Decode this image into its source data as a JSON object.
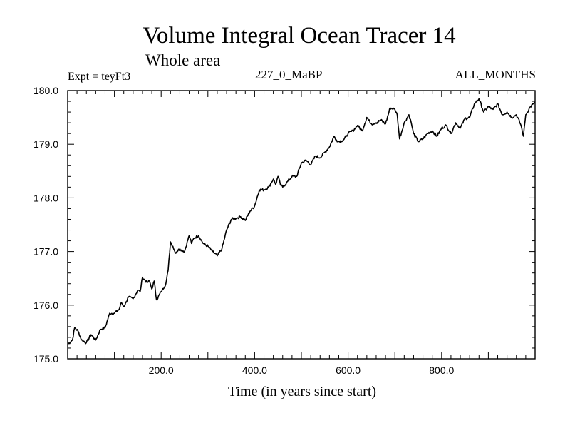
{
  "chart_data": {
    "type": "line",
    "title": "Volume Integral Ocean Tracer 14",
    "subtitle": "Whole area",
    "header_left": "Expt = teyFt3",
    "header_center": "227_0_MaBP",
    "header_right": "ALL_MONTHS",
    "xlabel": "Time (in years since start)",
    "ylabel": "",
    "xlim": [
      0,
      1000
    ],
    "ylim": [
      175.0,
      180.0
    ],
    "xticks": [
      200,
      400,
      600,
      800
    ],
    "xtick_labels": [
      "200.0",
      "400.0",
      "600.0",
      "800.0"
    ],
    "yticks": [
      175,
      176,
      177,
      178,
      179,
      180
    ],
    "ytick_labels": [
      "175.0",
      "176.0",
      "177.0",
      "178.0",
      "179.0",
      "180.0"
    ],
    "series": [
      {
        "name": "Volume Integral Ocean Tracer 14",
        "color": "#000000",
        "points": [
          [
            0,
            175.27
          ],
          [
            10,
            175.35
          ],
          [
            15,
            175.58
          ],
          [
            22,
            175.52
          ],
          [
            30,
            175.35
          ],
          [
            40,
            175.3
          ],
          [
            50,
            175.45
          ],
          [
            60,
            175.35
          ],
          [
            70,
            175.55
          ],
          [
            80,
            175.58
          ],
          [
            90,
            175.85
          ],
          [
            100,
            175.85
          ],
          [
            110,
            175.92
          ],
          [
            115,
            176.05
          ],
          [
            120,
            175.97
          ],
          [
            130,
            176.15
          ],
          [
            140,
            176.12
          ],
          [
            150,
            176.28
          ],
          [
            155,
            176.25
          ],
          [
            160,
            176.52
          ],
          [
            170,
            176.42
          ],
          [
            175,
            176.45
          ],
          [
            180,
            176.3
          ],
          [
            185,
            176.45
          ],
          [
            190,
            176.1
          ],
          [
            200,
            176.25
          ],
          [
            210,
            176.4
          ],
          [
            215,
            176.65
          ],
          [
            220,
            177.18
          ],
          [
            225,
            177.1
          ],
          [
            230,
            176.98
          ],
          [
            240,
            177.05
          ],
          [
            250,
            177.0
          ],
          [
            260,
            177.3
          ],
          [
            265,
            177.15
          ],
          [
            270,
            177.25
          ],
          [
            280,
            177.3
          ],
          [
            290,
            177.15
          ],
          [
            300,
            177.1
          ],
          [
            310,
            177.0
          ],
          [
            320,
            176.92
          ],
          [
            330,
            177.05
          ],
          [
            340,
            177.4
          ],
          [
            350,
            177.6
          ],
          [
            360,
            177.62
          ],
          [
            370,
            177.65
          ],
          [
            380,
            177.58
          ],
          [
            390,
            177.75
          ],
          [
            400,
            177.85
          ],
          [
            410,
            178.15
          ],
          [
            420,
            178.15
          ],
          [
            430,
            178.2
          ],
          [
            440,
            178.35
          ],
          [
            445,
            178.25
          ],
          [
            450,
            178.4
          ],
          [
            455,
            178.25
          ],
          [
            460,
            178.2
          ],
          [
            470,
            178.3
          ],
          [
            480,
            178.4
          ],
          [
            490,
            178.4
          ],
          [
            500,
            178.65
          ],
          [
            510,
            178.7
          ],
          [
            520,
            178.62
          ],
          [
            530,
            178.78
          ],
          [
            540,
            178.75
          ],
          [
            550,
            178.85
          ],
          [
            560,
            178.95
          ],
          [
            570,
            179.15
          ],
          [
            575,
            179.08
          ],
          [
            580,
            179.05
          ],
          [
            590,
            179.08
          ],
          [
            600,
            179.2
          ],
          [
            610,
            179.25
          ],
          [
            620,
            179.35
          ],
          [
            630,
            179.25
          ],
          [
            640,
            179.5
          ],
          [
            650,
            179.38
          ],
          [
            660,
            179.4
          ],
          [
            670,
            179.45
          ],
          [
            680,
            179.38
          ],
          [
            690,
            179.68
          ],
          [
            700,
            179.65
          ],
          [
            705,
            179.55
          ],
          [
            710,
            179.1
          ],
          [
            720,
            179.4
          ],
          [
            730,
            179.55
          ],
          [
            735,
            179.4
          ],
          [
            740,
            179.2
          ],
          [
            750,
            179.05
          ],
          [
            760,
            179.1
          ],
          [
            770,
            179.2
          ],
          [
            780,
            179.25
          ],
          [
            790,
            179.15
          ],
          [
            800,
            179.3
          ],
          [
            810,
            179.35
          ],
          [
            820,
            179.2
          ],
          [
            830,
            179.4
          ],
          [
            840,
            179.3
          ],
          [
            850,
            179.48
          ],
          [
            860,
            179.5
          ],
          [
            870,
            179.75
          ],
          [
            880,
            179.85
          ],
          [
            890,
            179.6
          ],
          [
            900,
            179.7
          ],
          [
            910,
            179.65
          ],
          [
            920,
            179.75
          ],
          [
            930,
            179.55
          ],
          [
            940,
            179.6
          ],
          [
            950,
            179.5
          ],
          [
            960,
            179.55
          ],
          [
            970,
            179.35
          ],
          [
            975,
            179.15
          ],
          [
            980,
            179.55
          ],
          [
            990,
            179.7
          ],
          [
            1000,
            179.78
          ]
        ]
      }
    ]
  }
}
